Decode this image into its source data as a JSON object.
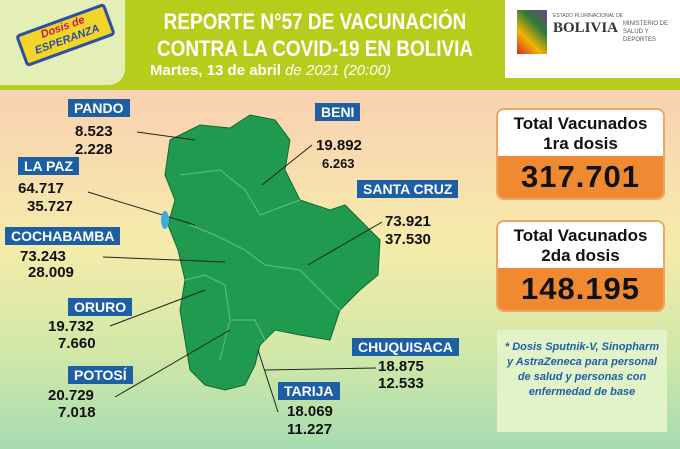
{
  "header": {
    "campaign_logo": "Dosis de ESPERANZA",
    "title_line1": "REPORTE N°57 DE VACUNACIÓN",
    "title_line2": "CONTRA LA COVID-19 EN BOLIVIA",
    "date_bold": "Martes, 13 de abril",
    "date_rest": " de 2021 (20:00)",
    "gov_logo_small": "ESTADO PLURINACIONAL DE",
    "gov_logo": "BOLIVIA",
    "ministry": "MINISTERIO DE SALUD Y DEPORTES"
  },
  "departments": [
    {
      "name": "PANDO",
      "first": "8.523",
      "second": "2.228"
    },
    {
      "name": "BENI",
      "first": "19.892",
      "second": "6.263"
    },
    {
      "name": "LA PAZ",
      "first": "64.717",
      "second": "35.727"
    },
    {
      "name": "SANTA CRUZ",
      "first": "73.921",
      "second": "37.530"
    },
    {
      "name": "COCHABAMBA",
      "first": "73.243",
      "second": "28.009"
    },
    {
      "name": "ORURO",
      "first": "19.732",
      "second": "7.660"
    },
    {
      "name": "POTOSÍ",
      "first": "20.729",
      "second": "7.018"
    },
    {
      "name": "TARIJA",
      "first": "18.069",
      "second": "11.227"
    },
    {
      "name": "CHUQUISACA",
      "first": "18.875",
      "second": "12.533"
    }
  ],
  "totals": [
    {
      "label": "Total Vacunados 1ra dosis",
      "value": "317.701"
    },
    {
      "label": "Total Vacunados 2da dosis",
      "value": "148.195"
    }
  ],
  "note": "* Dosis Sputnik-V, Sinopharm y AstraZeneca para personal de salud y personas con enfermedad de base",
  "colors": {
    "header": "#b6cd1c",
    "label_bg": "#1d5fa5",
    "map": "#1f9a4f",
    "card_value_bg": "#ef8a33"
  }
}
